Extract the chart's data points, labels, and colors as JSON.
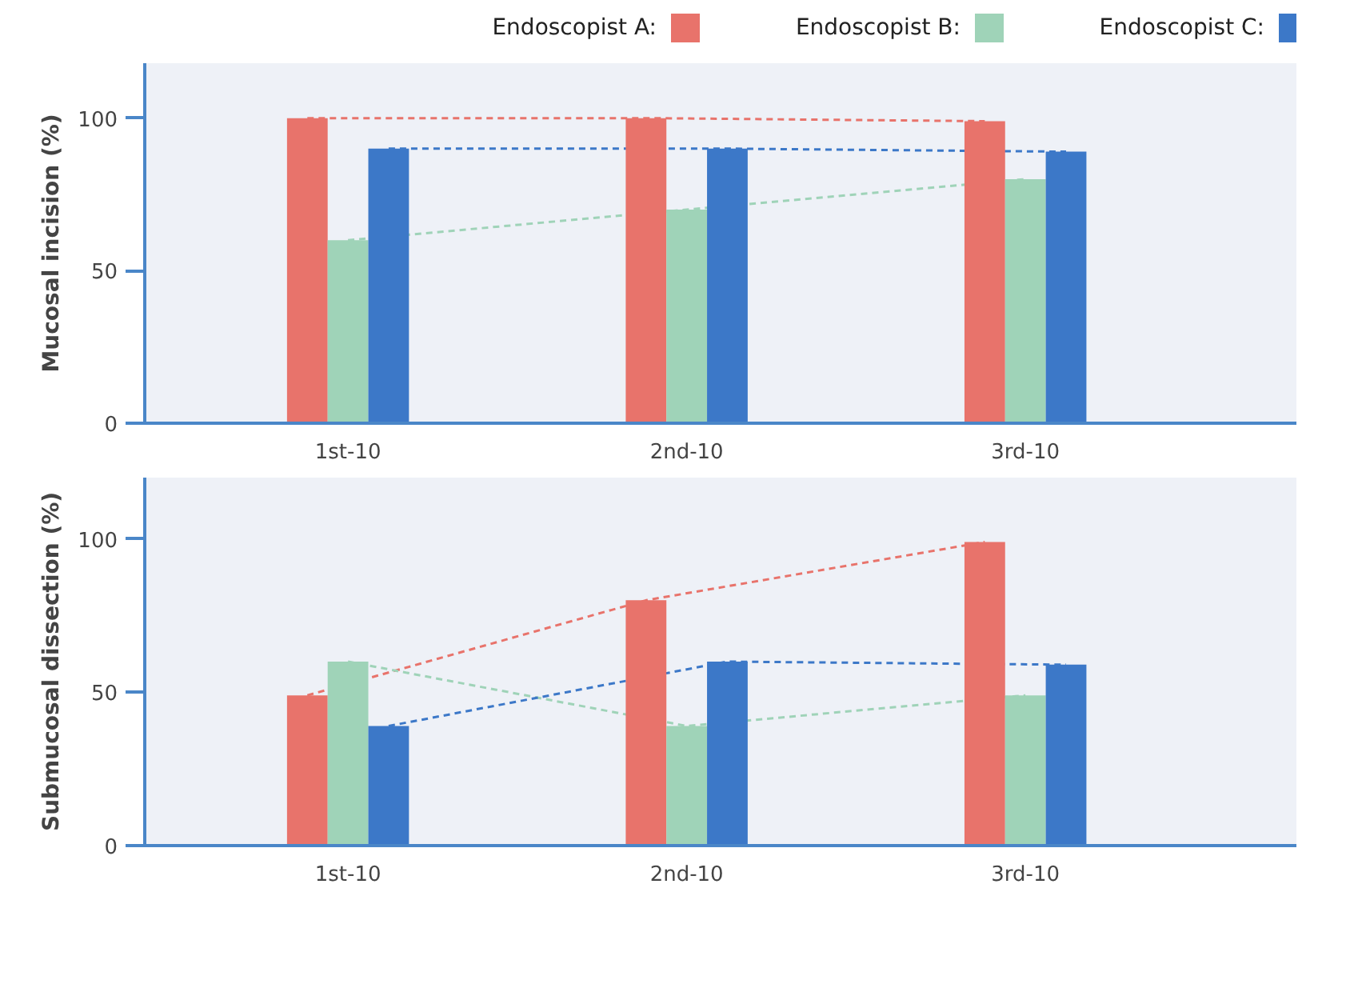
{
  "chart_data": [
    {
      "type": "bar",
      "ylabel": "Mucosal incision (%)",
      "categories": [
        "1st-10",
        "2nd-10",
        "3rd-10"
      ],
      "ylim": [
        0,
        118
      ],
      "yticks": [
        0,
        50,
        100
      ],
      "legend": "top",
      "grid": false,
      "line_style": "dashed",
      "series": [
        {
          "name": "Endoscopist A:",
          "color": "#e8736b",
          "values": [
            100,
            100,
            99
          ]
        },
        {
          "name": "Endoscopist B:",
          "color": "#9fd3b8",
          "values": [
            60,
            70,
            80
          ]
        },
        {
          "name": "Endoscopist C:",
          "color": "#3c78c8",
          "values": [
            90,
            90,
            89
          ]
        }
      ]
    },
    {
      "type": "bar",
      "ylabel": "Submucosal dissection (%)",
      "categories": [
        "1st-10",
        "2nd-10",
        "3rd-10"
      ],
      "ylim": [
        0,
        120
      ],
      "yticks": [
        0,
        50,
        100
      ],
      "legend": false,
      "grid": false,
      "line_style": "dashed",
      "series": [
        {
          "color": "#e8736b",
          "values": [
            49,
            80,
            99
          ]
        },
        {
          "color": "#9fd3b8",
          "values": [
            60,
            39,
            49
          ]
        },
        {
          "color": "#3c78c8",
          "values": [
            39,
            60,
            59
          ]
        }
      ]
    }
  ]
}
